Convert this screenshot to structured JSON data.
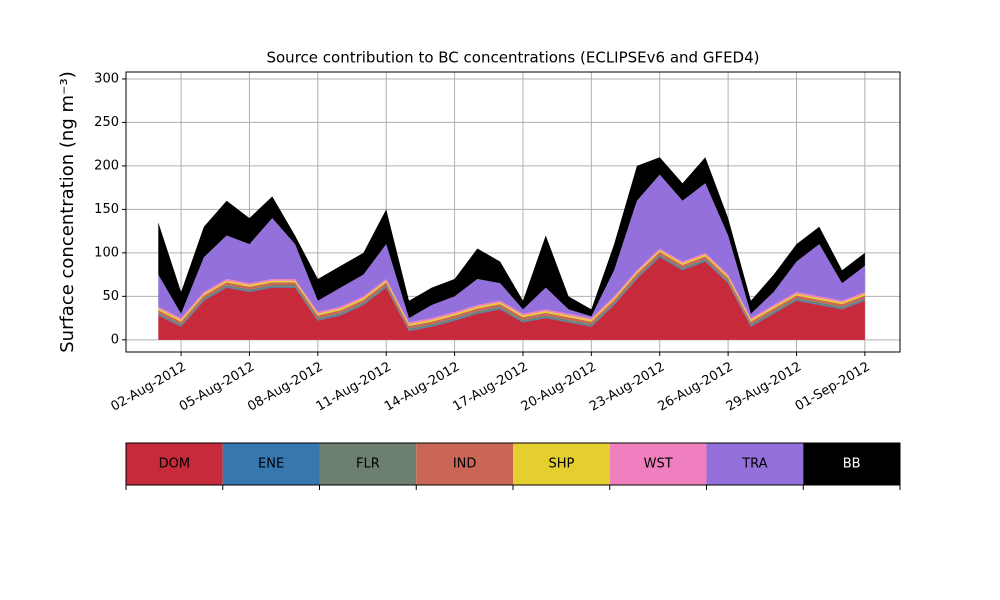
{
  "chart_data": {
    "type": "stacked_area",
    "title": "Source contribution to BC concentrations (ECLIPSEv6 and GFED4)",
    "y_label": "Surface concentration (ng m⁻³)",
    "x": [
      "2012-08-01",
      "2012-08-02",
      "2012-08-03",
      "2012-08-04",
      "2012-08-05",
      "2012-08-06",
      "2012-08-07",
      "2012-08-08",
      "2012-08-09",
      "2012-08-10",
      "2012-08-11",
      "2012-08-12",
      "2012-08-13",
      "2012-08-14",
      "2012-08-15",
      "2012-08-16",
      "2012-08-17",
      "2012-08-18",
      "2012-08-19",
      "2012-08-20",
      "2012-08-21",
      "2012-08-22",
      "2012-08-23",
      "2012-08-24",
      "2012-08-25",
      "2012-08-26",
      "2012-08-27",
      "2012-08-28",
      "2012-08-29",
      "2012-08-30",
      "2012-08-31",
      "2012-09-01"
    ],
    "series": [
      {
        "name": "DOM",
        "color": "#c62a3b",
        "values": [
          28,
          15,
          45,
          60,
          55,
          60,
          60,
          22,
          28,
          40,
          60,
          10,
          15,
          22,
          30,
          35,
          20,
          25,
          20,
          15,
          40,
          70,
          95,
          80,
          90,
          65,
          15,
          30,
          45,
          40,
          35,
          45
        ]
      },
      {
        "name": "ENE",
        "color": "#3777b0",
        "values": [
          1,
          1,
          1,
          1,
          1,
          1,
          1,
          1,
          1,
          1,
          1,
          1,
          1,
          1,
          1,
          1,
          1,
          1,
          1,
          1,
          1,
          1,
          1,
          1,
          1,
          1,
          1,
          1,
          1,
          1,
          1,
          1
        ]
      },
      {
        "name": "FLR",
        "color": "#6d8070",
        "values": [
          2,
          2,
          2,
          2,
          2,
          2,
          2,
          2,
          2,
          2,
          2,
          2,
          2,
          2,
          2,
          2,
          2,
          2,
          2,
          2,
          2,
          2,
          2,
          2,
          2,
          2,
          2,
          2,
          2,
          2,
          2,
          2
        ]
      },
      {
        "name": "IND",
        "color": "#c96656",
        "values": [
          3,
          3,
          3,
          3,
          3,
          3,
          3,
          3,
          3,
          3,
          3,
          3,
          3,
          3,
          3,
          3,
          3,
          3,
          3,
          3,
          3,
          3,
          3,
          3,
          3,
          3,
          3,
          3,
          3,
          3,
          3,
          3
        ]
      },
      {
        "name": "SHP",
        "color": "#e5cf2e",
        "values": [
          2,
          2,
          2,
          2,
          2,
          2,
          2,
          2,
          2,
          2,
          2,
          2,
          2,
          2,
          2,
          2,
          2,
          2,
          2,
          2,
          2,
          2,
          2,
          2,
          2,
          2,
          2,
          2,
          2,
          2,
          2,
          2
        ]
      },
      {
        "name": "WST",
        "color": "#f07fbf",
        "values": [
          2,
          2,
          2,
          2,
          2,
          2,
          2,
          2,
          2,
          2,
          2,
          2,
          2,
          2,
          2,
          2,
          2,
          2,
          2,
          2,
          2,
          2,
          2,
          2,
          2,
          2,
          2,
          2,
          2,
          2,
          2,
          2
        ]
      },
      {
        "name": "TRA",
        "color": "#9370db",
        "values": [
          37,
          5,
          40,
          50,
          45,
          70,
          40,
          13,
          22,
          25,
          40,
          5,
          15,
          18,
          30,
          20,
          5,
          25,
          5,
          2,
          30,
          80,
          85,
          70,
          80,
          45,
          5,
          15,
          35,
          60,
          20,
          30
        ]
      },
      {
        "name": "BB",
        "color": "#000000",
        "values": [
          60,
          25,
          35,
          40,
          30,
          25,
          10,
          25,
          25,
          25,
          40,
          20,
          20,
          20,
          35,
          25,
          10,
          60,
          15,
          8,
          30,
          40,
          20,
          20,
          30,
          20,
          15,
          20,
          20,
          20,
          15,
          15
        ]
      }
    ],
    "xlim": [
      "2012-07-30T14:00:00Z",
      "2012-09-02T13:00:00Z"
    ],
    "ylim": [
      -14,
      308
    ],
    "yticks": [
      0,
      50,
      100,
      150,
      200,
      250,
      300
    ],
    "xticks": [
      {
        "value": "2012-08-02",
        "label": "02-Aug-2012"
      },
      {
        "value": "2012-08-05",
        "label": "05-Aug-2012"
      },
      {
        "value": "2012-08-08",
        "label": "08-Aug-2012"
      },
      {
        "value": "2012-08-11",
        "label": "11-Aug-2012"
      },
      {
        "value": "2012-08-14",
        "label": "14-Aug-2012"
      },
      {
        "value": "2012-08-17",
        "label": "17-Aug-2012"
      },
      {
        "value": "2012-08-20",
        "label": "20-Aug-2012"
      },
      {
        "value": "2012-08-23",
        "label": "23-Aug-2012"
      },
      {
        "value": "2012-08-26",
        "label": "26-Aug-2012"
      },
      {
        "value": "2012-08-29",
        "label": "29-Aug-2012"
      },
      {
        "value": "2012-09-01",
        "label": "01-Sep-2012"
      }
    ],
    "grid": true
  }
}
